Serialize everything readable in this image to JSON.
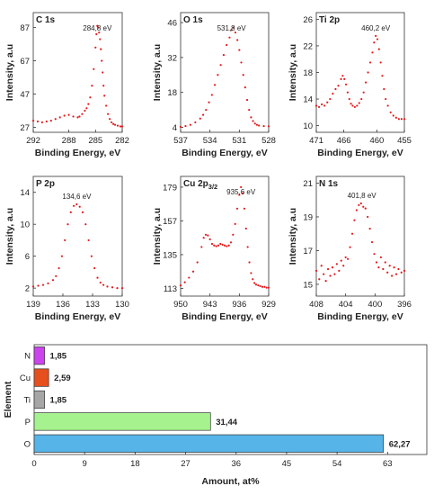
{
  "chart_data": [
    {
      "type": "scatter",
      "title": "C 1s",
      "peak_label": "284,8 eV",
      "peak_x": 284.8,
      "xlabel": "Binding Energy, eV",
      "ylabel": "Intensity, a.u",
      "xlim": [
        292,
        282
      ],
      "ylim": [
        24,
        96
      ],
      "xticks": [
        292,
        288,
        285,
        282
      ],
      "yticks": [
        27,
        47,
        67,
        87
      ],
      "color": "#e41a1c",
      "points": [
        [
          292,
          31
        ],
        [
          291.5,
          30.5
        ],
        [
          291,
          30
        ],
        [
          290.5,
          30.5
        ],
        [
          290,
          31
        ],
        [
          289.5,
          32
        ],
        [
          289,
          33
        ],
        [
          288.5,
          34
        ],
        [
          288,
          34.5
        ],
        [
          287.5,
          33.5
        ],
        [
          287,
          33
        ],
        [
          286.8,
          33.5
        ],
        [
          286.5,
          35
        ],
        [
          286.2,
          37
        ],
        [
          286,
          38.5
        ],
        [
          285.8,
          41
        ],
        [
          285.6,
          45
        ],
        [
          285.4,
          52
        ],
        [
          285.2,
          62
        ],
        [
          285,
          75
        ],
        [
          284.9,
          83
        ],
        [
          284.8,
          88
        ],
        [
          284.7,
          87
        ],
        [
          284.6,
          84
        ],
        [
          284.5,
          80
        ],
        [
          284.4,
          74
        ],
        [
          284.3,
          67
        ],
        [
          284.2,
          60
        ],
        [
          284.1,
          52
        ],
        [
          284,
          46
        ],
        [
          283.8,
          40
        ],
        [
          283.6,
          35
        ],
        [
          283.4,
          32
        ],
        [
          283.2,
          30
        ],
        [
          283,
          29
        ],
        [
          282.8,
          28.5
        ],
        [
          282.5,
          28
        ],
        [
          282.2,
          27.5
        ],
        [
          282,
          27.5
        ]
      ]
    },
    {
      "type": "scatter",
      "title": "O 1s",
      "peak_label": "531,8 eV",
      "peak_x": 531.8,
      "xlabel": "Binding Energy, eV",
      "ylabel": "Intensity, a.u",
      "xlim": [
        537,
        528
      ],
      "ylim": [
        2,
        50
      ],
      "xticks": [
        537,
        534,
        531,
        528
      ],
      "yticks": [
        4,
        18,
        32,
        46
      ],
      "color": "#e41a1c",
      "points": [
        [
          537,
          4.2
        ],
        [
          536.5,
          4.5
        ],
        [
          536,
          5
        ],
        [
          535.5,
          6
        ],
        [
          535,
          7.5
        ],
        [
          534.7,
          9
        ],
        [
          534.4,
          11
        ],
        [
          534.1,
          14
        ],
        [
          533.8,
          17
        ],
        [
          533.5,
          21
        ],
        [
          533.2,
          25
        ],
        [
          532.9,
          29
        ],
        [
          532.6,
          33
        ],
        [
          532.3,
          37
        ],
        [
          532,
          40
        ],
        [
          531.8,
          43
        ],
        [
          531.6,
          44
        ],
        [
          531.4,
          42
        ],
        [
          531.2,
          39
        ],
        [
          531,
          35
        ],
        [
          530.8,
          30
        ],
        [
          530.6,
          25
        ],
        [
          530.4,
          20
        ],
        [
          530.2,
          15
        ],
        [
          530,
          11
        ],
        [
          529.8,
          8
        ],
        [
          529.6,
          6.5
        ],
        [
          529.4,
          5.5
        ],
        [
          529.2,
          5
        ],
        [
          529,
          4.7
        ],
        [
          528.5,
          4.5
        ],
        [
          528,
          4.4
        ]
      ]
    },
    {
      "type": "scatter",
      "title": "Ti 2p",
      "peak_label": "460,2 eV",
      "peak_x": 460.2,
      "xlabel": "Binding Energy, eV",
      "ylabel": "Intensity, a.u",
      "xlim": [
        471,
        455
      ],
      "ylim": [
        9,
        27
      ],
      "xticks": [
        471,
        466,
        460,
        455
      ],
      "yticks": [
        10,
        14,
        18,
        22,
        26
      ],
      "color": "#e41a1c",
      "points": [
        [
          471,
          13
        ],
        [
          470.5,
          12.8
        ],
        [
          470,
          13.2
        ],
        [
          469.5,
          13
        ],
        [
          469,
          13.5
        ],
        [
          468.5,
          14
        ],
        [
          468,
          14.8
        ],
        [
          467.5,
          15.5
        ],
        [
          467,
          16
        ],
        [
          466.5,
          17
        ],
        [
          466.2,
          17.5
        ],
        [
          465.9,
          17
        ],
        [
          465.6,
          16.2
        ],
        [
          465.3,
          15
        ],
        [
          465,
          14
        ],
        [
          464.7,
          13.3
        ],
        [
          464.4,
          13
        ],
        [
          464,
          12.8
        ],
        [
          463.6,
          13
        ],
        [
          463.2,
          13.4
        ],
        [
          462.8,
          14
        ],
        [
          462.4,
          15
        ],
        [
          462,
          16.5
        ],
        [
          461.6,
          18
        ],
        [
          461.2,
          19.5
        ],
        [
          460.8,
          21
        ],
        [
          460.5,
          22.5
        ],
        [
          460.2,
          23.5
        ],
        [
          459.9,
          23
        ],
        [
          459.6,
          21.5
        ],
        [
          459.3,
          19.5
        ],
        [
          459,
          17.5
        ],
        [
          458.7,
          15.5
        ],
        [
          458.4,
          14
        ],
        [
          458,
          13
        ],
        [
          457.5,
          12
        ],
        [
          457,
          11.5
        ],
        [
          456.5,
          11.2
        ],
        [
          456,
          11
        ],
        [
          455.5,
          11
        ],
        [
          455,
          11
        ]
      ]
    },
    {
      "type": "scatter",
      "title": "P 2p",
      "peak_label": "134,6 eV",
      "peak_x": 134.6,
      "xlabel": "Binding Energy, eV",
      "ylabel": "Intensity, a.u",
      "xlim": [
        139,
        130
      ],
      "ylim": [
        1,
        16
      ],
      "xticks": [
        139,
        136,
        133,
        130
      ],
      "yticks": [
        2,
        6,
        10,
        14
      ],
      "color": "#e41a1c",
      "points": [
        [
          139,
          2.2
        ],
        [
          138.5,
          2.3
        ],
        [
          138,
          2.4
        ],
        [
          137.5,
          2.6
        ],
        [
          137,
          3
        ],
        [
          136.7,
          3.5
        ],
        [
          136.4,
          4.5
        ],
        [
          136.1,
          6
        ],
        [
          135.8,
          8
        ],
        [
          135.5,
          10
        ],
        [
          135.2,
          11.5
        ],
        [
          134.9,
          12.3
        ],
        [
          134.6,
          12.5
        ],
        [
          134.3,
          12.2
        ],
        [
          134,
          11.5
        ],
        [
          133.7,
          10
        ],
        [
          133.4,
          8
        ],
        [
          133.1,
          6
        ],
        [
          132.8,
          4.5
        ],
        [
          132.5,
          3.3
        ],
        [
          132.2,
          2.7
        ],
        [
          131.9,
          2.4
        ],
        [
          131.5,
          2.2
        ],
        [
          131,
          2.1
        ],
        [
          130.5,
          2
        ],
        [
          130,
          2
        ]
      ]
    },
    {
      "type": "scatter",
      "title": "Cu 2p",
      "title_subscript": "3/2",
      "peak_label": "935,6 eV",
      "peak_x": 935.6,
      "xlabel": "Binding Energy, eV",
      "ylabel": "Intensity, a.u",
      "xlim": [
        950,
        929
      ],
      "ylim": [
        108,
        186
      ],
      "xticks": [
        950,
        943,
        936,
        929
      ],
      "yticks": [
        113,
        135,
        157,
        179
      ],
      "color": "#e41a1c",
      "points": [
        [
          950,
          115
        ],
        [
          949,
          117
        ],
        [
          948,
          120
        ],
        [
          947,
          124
        ],
        [
          946,
          130
        ],
        [
          945,
          140
        ],
        [
          944.5,
          146
        ],
        [
          944,
          148
        ],
        [
          943.5,
          147.5
        ],
        [
          943,
          145
        ],
        [
          942.5,
          142
        ],
        [
          942,
          141
        ],
        [
          941.5,
          140.5
        ],
        [
          941,
          141
        ],
        [
          940.5,
          142
        ],
        [
          940,
          141.5
        ],
        [
          939.5,
          141
        ],
        [
          939,
          140.5
        ],
        [
          938.5,
          141
        ],
        [
          938,
          143
        ],
        [
          937.5,
          148
        ],
        [
          937,
          155
        ],
        [
          936.5,
          165
        ],
        [
          936,
          174
        ],
        [
          935.6,
          179
        ],
        [
          935.2,
          175
        ],
        [
          934.8,
          165
        ],
        [
          934.4,
          152
        ],
        [
          934,
          140
        ],
        [
          933.6,
          130
        ],
        [
          933.2,
          123
        ],
        [
          932.8,
          119
        ],
        [
          932.4,
          116.5
        ],
        [
          932,
          115.5
        ],
        [
          931.5,
          115
        ],
        [
          931,
          114.5
        ],
        [
          930.5,
          114
        ],
        [
          930,
          114
        ],
        [
          929.5,
          113.5
        ],
        [
          929,
          113.5
        ]
      ]
    },
    {
      "type": "scatter",
      "title": "N 1s",
      "peak_label": "401,8 eV",
      "peak_x": 401.8,
      "xlabel": "Binding Energy, eV",
      "ylabel": "Intensity, a.u",
      "xlim": [
        408,
        396
      ],
      "ylim": [
        14.3,
        21.4
      ],
      "xticks": [
        408,
        404,
        400,
        396
      ],
      "yticks": [
        15,
        17,
        19,
        21
      ],
      "color": "#e41a1c",
      "points": [
        [
          408,
          15.8
        ],
        [
          407.6,
          15.3
        ],
        [
          407.3,
          16.1
        ],
        [
          407,
          15.6
        ],
        [
          406.7,
          15.2
        ],
        [
          406.4,
          15.9
        ],
        [
          406.1,
          15.5
        ],
        [
          405.8,
          16
        ],
        [
          405.5,
          15.6
        ],
        [
          405.2,
          16.2
        ],
        [
          404.9,
          15.8
        ],
        [
          404.6,
          16.4
        ],
        [
          404.3,
          16.1
        ],
        [
          404,
          16.6
        ],
        [
          403.7,
          16.5
        ],
        [
          403.4,
          17.2
        ],
        [
          403.1,
          18
        ],
        [
          402.8,
          18.8
        ],
        [
          402.5,
          19.4
        ],
        [
          402.2,
          19.7
        ],
        [
          401.9,
          19.8
        ],
        [
          401.6,
          19.6
        ],
        [
          401.3,
          19.5
        ],
        [
          401,
          19
        ],
        [
          400.7,
          18.3
        ],
        [
          400.4,
          17.5
        ],
        [
          400.1,
          16.8
        ],
        [
          399.8,
          16.3
        ],
        [
          399.5,
          16
        ],
        [
          399.2,
          16.6
        ],
        [
          398.9,
          15.9
        ],
        [
          398.6,
          16.3
        ],
        [
          398.3,
          15.7
        ],
        [
          398,
          16.1
        ],
        [
          397.7,
          15.5
        ],
        [
          397.4,
          16
        ],
        [
          397.1,
          15.6
        ],
        [
          396.8,
          15.9
        ],
        [
          396.4,
          15.7
        ],
        [
          396,
          15.8
        ]
      ]
    },
    {
      "type": "bar",
      "orientation": "horizontal",
      "xlabel": "Amount, at%",
      "ylabel": "Element",
      "categories": [
        "O",
        "P",
        "Ti",
        "Cu",
        "N"
      ],
      "values": [
        62.27,
        31.44,
        1.85,
        2.59,
        1.85
      ],
      "value_labels": [
        "62,27",
        "31,44",
        "1,85",
        "2,59",
        "1,85"
      ],
      "colors": [
        "#56b4e9",
        "#a6f28f",
        "#a6a6a6",
        "#e6501e",
        "#cc44ee"
      ],
      "xlim": [
        0,
        70
      ],
      "xticks": [
        0,
        9,
        18,
        27,
        36,
        45,
        54,
        63
      ]
    }
  ]
}
